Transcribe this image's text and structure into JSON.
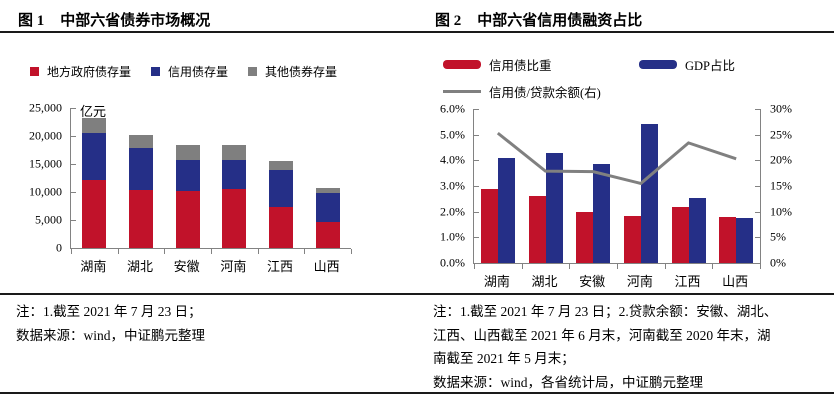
{
  "figure1": {
    "label": "图 1",
    "title": "中部六省债券市场概况",
    "unit": "亿元",
    "notes": [
      "注：1.截至 2021 年 7 月 23 日；",
      "数据来源：wind，中证鹏元整理"
    ]
  },
  "figure2": {
    "label": "图 2",
    "title": "中部六省信用债融资占比",
    "notes": [
      "注：1.截至 2021 年 7 月 23 日；2.贷款余额：安徽、湖北、",
      "江西、山西截至 2021 年 6 月末，河南截至 2020 年末，湖",
      "南截至 2021 年 5 月末；",
      "数据来源：wind，各省统计局，中证鹏元整理"
    ]
  },
  "colors": {
    "red": "#c1122a",
    "blue": "#252f87",
    "gray": "#7f7f7f",
    "line_gray": "#808080",
    "axis": "#828282",
    "rule": "#1a1a1a"
  },
  "chart_data": [
    {
      "type": "bar",
      "stacked": true,
      "title": "中部六省债券市场概况",
      "categories": [
        "湖南",
        "湖北",
        "安徽",
        "河南",
        "江西",
        "山西"
      ],
      "series": [
        {
          "name": "地方政府债存量",
          "color": "#c1122a",
          "values": [
            12100,
            10300,
            10100,
            10600,
            7250,
            4600
          ]
        },
        {
          "name": "信用债存量",
          "color": "#252f87",
          "values": [
            8400,
            7650,
            5700,
            5200,
            6750,
            5300
          ]
        },
        {
          "name": "其他债券存量",
          "color": "#7f7f7f",
          "values": [
            2750,
            2300,
            2600,
            2600,
            1500,
            850
          ]
        }
      ],
      "ylabel": "亿元",
      "ylim": [
        0,
        25000
      ],
      "yticks": [
        "25,000",
        "20,000",
        "15,000",
        "10,000",
        "5,000",
        "0"
      ],
      "grid": false,
      "legend_position": "top"
    },
    {
      "type": "bar",
      "stacked": false,
      "title": "中部六省信用债融资占比",
      "categories": [
        "湖南",
        "湖北",
        "安徽",
        "河南",
        "江西",
        "山西"
      ],
      "series": [
        {
          "name": "信用债比重",
          "type": "bar",
          "axis": "left",
          "color": "#c1122a",
          "values": [
            2.9,
            2.6,
            2.0,
            1.85,
            2.2,
            1.8
          ]
        },
        {
          "name": "GDP占比",
          "type": "bar",
          "axis": "left",
          "color": "#252f87",
          "values": [
            4.1,
            4.3,
            3.85,
            5.4,
            2.55,
            1.75
          ]
        },
        {
          "name": "信用债/贷款余额(右)",
          "type": "line",
          "axis": "right",
          "color": "#808080",
          "values": [
            25.3,
            17.9,
            17.8,
            15.5,
            23.4,
            20.3
          ]
        }
      ],
      "ylim_left": [
        0,
        6
      ],
      "ylim_right": [
        0,
        30
      ],
      "yticks_left": [
        "6.0%",
        "5.0%",
        "4.0%",
        "3.0%",
        "2.0%",
        "1.0%",
        "0.0%"
      ],
      "yticks_right": [
        "30%",
        "25%",
        "20%",
        "15%",
        "10%",
        "5%",
        "0%"
      ],
      "grid": false,
      "legend_position": "top"
    }
  ]
}
